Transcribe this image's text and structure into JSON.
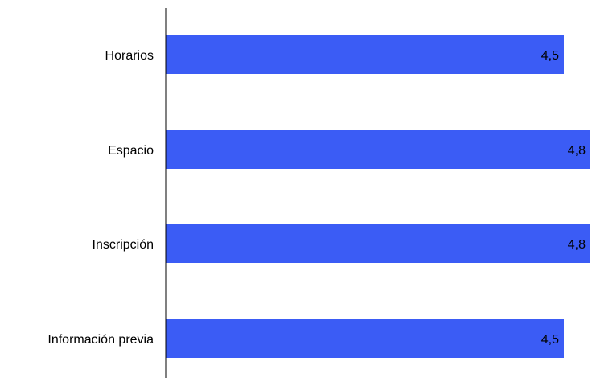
{
  "chart_data": {
    "type": "bar",
    "orientation": "horizontal",
    "categories": [
      "Horarios",
      "Espacio",
      "Inscripción",
      "Información previa"
    ],
    "values": [
      4.5,
      4.8,
      4.8,
      4.5
    ],
    "value_labels": [
      "4,5",
      "4,8",
      "4,8",
      "4,5"
    ],
    "title": "",
    "xlabel": "",
    "ylabel": "",
    "xlim": [
      0,
      4.8
    ],
    "grid": false,
    "legend": "none",
    "bar_color": "#3b5cf5"
  }
}
